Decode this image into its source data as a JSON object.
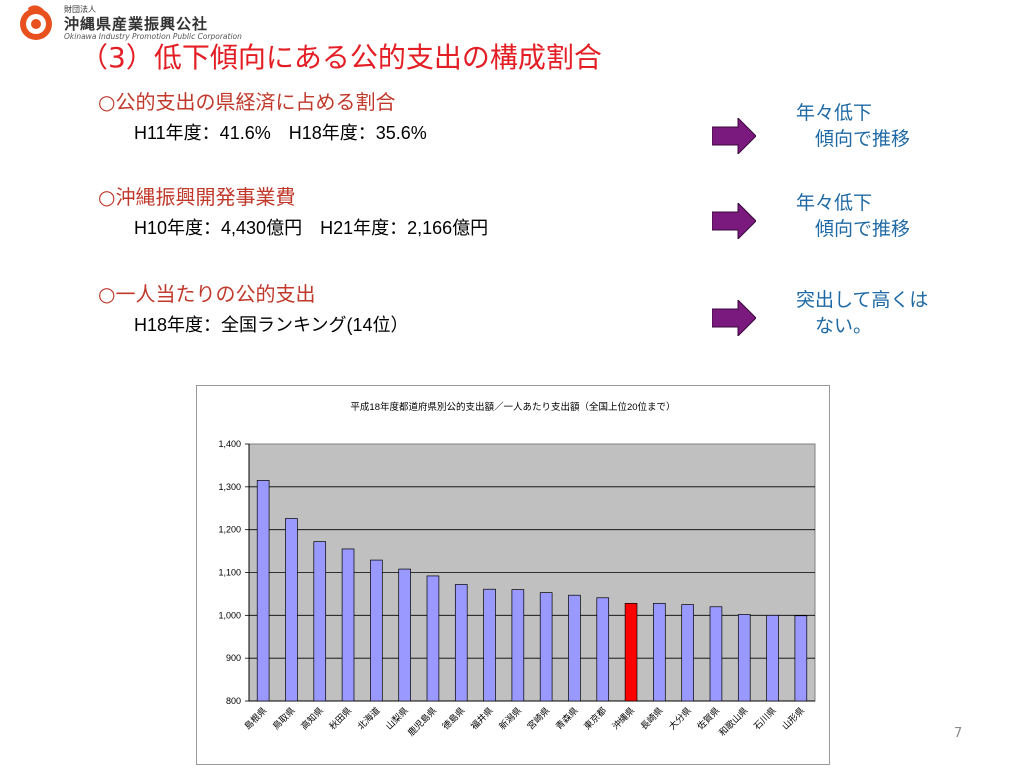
{
  "header": {
    "org_small": "財団法人",
    "org_name": "沖縄県産業振興公社",
    "org_en": "Okinawa Industry Promotion Public Corporation"
  },
  "title": "（3）低下傾向にある公的支出の構成割合",
  "sections": [
    {
      "heading": "○公的支出の県経済に占める割合",
      "detail": "H11年度：41.6%　H18年度：35.6%",
      "note": "年々低下\n　傾向で推移"
    },
    {
      "heading": "○沖縄振興開発事業費",
      "detail": "H10年度：4,430億円　H21年度：2,166億円",
      "note": "年々低下\n　傾向で推移"
    },
    {
      "heading": "○一人当たりの公的支出",
      "detail": "H18年度：全国ランキング(14位）",
      "note": "突出して高くは\n　ない。"
    }
  ],
  "colors": {
    "title": "#e31e24",
    "heading": "#c0392b",
    "note": "#1f6aa5",
    "arrow": "#7b1a7e",
    "bar": "#9999ff",
    "bar_highlight": "#ff0000",
    "plot_bg": "#c0c0c0"
  },
  "page_number": "7",
  "chart_data": {
    "type": "bar",
    "title": "平成18年度都道府県別公的支出額／一人あたり支出額（全国上位20位まで）",
    "categories": [
      "島根県",
      "鳥取県",
      "高知県",
      "秋田県",
      "北海道",
      "山梨県",
      "鹿児島県",
      "徳島県",
      "福井県",
      "新潟県",
      "宮崎県",
      "青森県",
      "東京都",
      "沖縄県",
      "長崎県",
      "大分県",
      "佐賀県",
      "和歌山県",
      "石川県",
      "山形県"
    ],
    "values": [
      1315,
      1226,
      1172,
      1155,
      1129,
      1108,
      1092,
      1072,
      1061,
      1060,
      1053,
      1047,
      1041,
      1028,
      1028,
      1025,
      1020,
      1002,
      1000,
      999
    ],
    "highlight": "沖縄県",
    "ylim": [
      800,
      1400
    ],
    "yticks": [
      "800",
      "900",
      "1,000",
      "1,100",
      "1,200",
      "1,300",
      "1,400"
    ],
    "grid": true,
    "legend": "none"
  }
}
